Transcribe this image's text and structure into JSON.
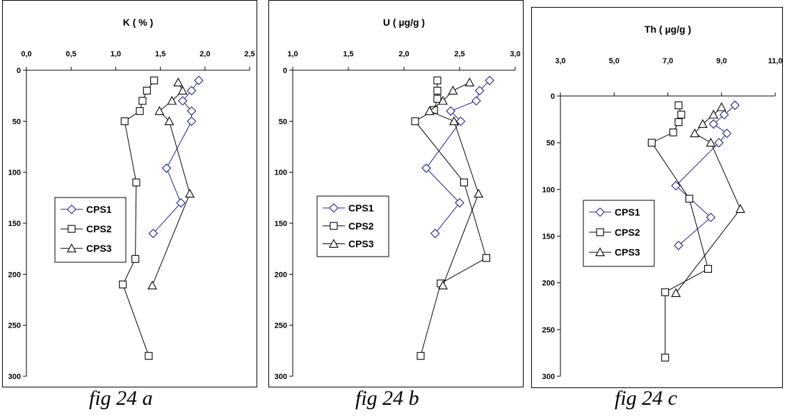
{
  "chart_data": [
    {
      "type": "line",
      "title": "K ( % )",
      "caption": "fig 24 a",
      "xlim": [
        0,
        2.5
      ],
      "x_ticks": [
        "0,0",
        "0,5",
        "1,0",
        "1,5",
        "2,0",
        "2,5"
      ],
      "ylim": [
        0,
        300
      ],
      "y_ticks": [
        "0",
        "50",
        "100",
        "150",
        "200",
        "250",
        "300"
      ],
      "y_inverted": true,
      "x_axis_position": "top",
      "legend_placement": "left-middle",
      "series": [
        {
          "name": "CPS1",
          "marker": "diamond",
          "color": "#1f1f8f",
          "points": [
            [
              1.93,
              10
            ],
            [
              1.85,
              20
            ],
            [
              1.75,
              30
            ],
            [
              1.85,
              40
            ],
            [
              1.85,
              50
            ],
            [
              1.57,
              96
            ],
            [
              1.73,
              130
            ],
            [
              1.42,
              160
            ]
          ]
        },
        {
          "name": "CPS2",
          "marker": "square",
          "color": "#000000",
          "points": [
            [
              1.43,
              10
            ],
            [
              1.35,
              20
            ],
            [
              1.3,
              30
            ],
            [
              1.27,
              40
            ],
            [
              1.1,
              50
            ],
            [
              1.23,
              110
            ],
            [
              1.22,
              185
            ],
            [
              1.08,
              210
            ],
            [
              1.37,
              280
            ]
          ]
        },
        {
          "name": "CPS3",
          "marker": "triangle",
          "color": "#000000",
          "points": [
            [
              1.7,
              12
            ],
            [
              1.75,
              20
            ],
            [
              1.63,
              30
            ],
            [
              1.49,
              40
            ],
            [
              1.6,
              50
            ],
            [
              1.83,
              121
            ],
            [
              1.41,
              211
            ]
          ]
        }
      ]
    },
    {
      "type": "line",
      "title": "U ( µg/g )",
      "caption": "fig 24 b",
      "xlim": [
        1.0,
        3.0
      ],
      "x_ticks": [
        "1,0",
        "1,5",
        "2,0",
        "2,5",
        "3,0"
      ],
      "ylim": [
        0,
        300
      ],
      "y_ticks": [
        "0",
        "50",
        "100",
        "150",
        "200",
        "250",
        "300"
      ],
      "y_inverted": true,
      "x_axis_position": "top",
      "legend_placement": "left-middle",
      "series": [
        {
          "name": "CPS1",
          "marker": "diamond",
          "color": "#1f1f8f",
          "points": [
            [
              2.77,
              10
            ],
            [
              2.68,
              20
            ],
            [
              2.65,
              30
            ],
            [
              2.42,
              40
            ],
            [
              2.51,
              50
            ],
            [
              2.2,
              96
            ],
            [
              2.5,
              130
            ],
            [
              2.28,
              160
            ]
          ]
        },
        {
          "name": "CPS2",
          "marker": "square",
          "color": "#000000",
          "points": [
            [
              2.3,
              10
            ],
            [
              2.3,
              20
            ],
            [
              2.3,
              28
            ],
            [
              2.27,
              39
            ],
            [
              2.1,
              50
            ],
            [
              2.54,
              110
            ],
            [
              2.74,
              184
            ],
            [
              2.33,
              209
            ],
            [
              2.15,
              280
            ]
          ]
        },
        {
          "name": "CPS3",
          "marker": "triangle",
          "color": "#000000",
          "points": [
            [
              2.59,
              12
            ],
            [
              2.44,
              20
            ],
            [
              2.35,
              30
            ],
            [
              2.23,
              40
            ],
            [
              2.45,
              50
            ],
            [
              2.67,
              121
            ],
            [
              2.35,
              211
            ]
          ]
        }
      ]
    },
    {
      "type": "line",
      "title": "Th ( µg/g )",
      "caption": "fig 24 c",
      "xlim": [
        3.0,
        11.0
      ],
      "x_ticks": [
        "3,0",
        "5,0",
        "7,0",
        "9,0",
        "11,0"
      ],
      "ylim": [
        0,
        300
      ],
      "y_ticks": [
        "0",
        "50",
        "100",
        "150",
        "200",
        "250",
        "300"
      ],
      "y_inverted": true,
      "x_axis_position": "top",
      "legend_placement": "left-middle",
      "series": [
        {
          "name": "CPS1",
          "marker": "diamond",
          "color": "#1f1f8f",
          "points": [
            [
              9.5,
              10
            ],
            [
              9.1,
              20
            ],
            [
              8.7,
              30
            ],
            [
              9.2,
              40
            ],
            [
              8.9,
              50
            ],
            [
              7.3,
              96
            ],
            [
              8.6,
              130
            ],
            [
              7.4,
              160
            ]
          ]
        },
        {
          "name": "CPS2",
          "marker": "square",
          "color": "#000000",
          "points": [
            [
              7.4,
              10
            ],
            [
              7.5,
              20
            ],
            [
              7.4,
              28
            ],
            [
              7.2,
              39
            ],
            [
              6.4,
              50
            ],
            [
              7.8,
              110
            ],
            [
              8.5,
              185
            ],
            [
              6.9,
              210
            ],
            [
              6.9,
              280
            ]
          ]
        },
        {
          "name": "CPS3",
          "marker": "triangle",
          "color": "#000000",
          "points": [
            [
              9.0,
              12
            ],
            [
              8.7,
              20
            ],
            [
              8.3,
              30
            ],
            [
              8.0,
              40
            ],
            [
              8.6,
              50
            ],
            [
              9.7,
              121
            ],
            [
              7.3,
              211
            ]
          ]
        }
      ]
    }
  ]
}
